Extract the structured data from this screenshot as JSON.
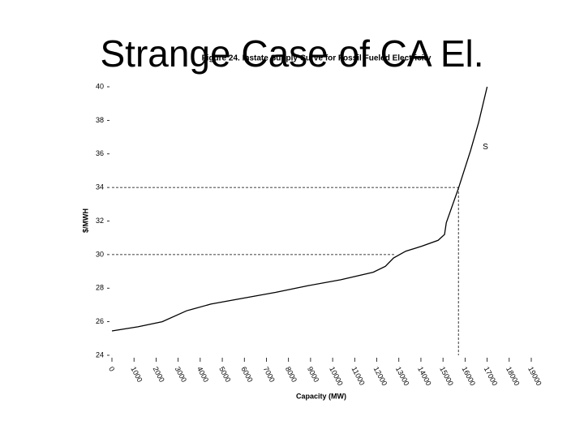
{
  "slide_title": "Strange Case of CA El.",
  "chart_data": {
    "type": "line",
    "title": "Figure 24. Instate Supply Curve for Fossil Fueled Electricity",
    "x_label": "Capacity (MW)",
    "y_label": "$/MWH",
    "x": [
      0,
      1180,
      2280,
      3380,
      4480,
      5950,
      7430,
      8900,
      10370,
      11840,
      12390,
      12760,
      13310,
      14040,
      14780,
      15070,
      15150,
      15700,
      16250,
      16620,
      17000
    ],
    "series": [
      {
        "name": "S",
        "color": "#000000",
        "values": [
          25.45,
          25.7,
          26.0,
          26.65,
          27.05,
          27.4,
          27.75,
          28.15,
          28.5,
          28.95,
          29.3,
          29.8,
          30.2,
          30.5,
          30.85,
          31.2,
          31.9,
          33.95,
          36.2,
          37.9,
          40
        ]
      }
    ],
    "annotations": [
      {
        "text": "S",
        "x": 16800,
        "y": 36.4
      }
    ],
    "reference_lines": [
      {
        "x": 15700,
        "y": 34,
        "drop": true
      },
      {
        "x": 12800,
        "y": 30,
        "drop": false
      }
    ],
    "xlim": [
      0,
      19000
    ],
    "ylim": [
      24,
      40
    ],
    "xticks": [
      0,
      1000,
      2000,
      3000,
      4000,
      5000,
      6000,
      7000,
      8000,
      9000,
      10000,
      11000,
      12000,
      13000,
      14000,
      15000,
      16000,
      17000,
      18000,
      19000
    ],
    "yticks": [
      24,
      26,
      28,
      30,
      32,
      34,
      36,
      38,
      40
    ]
  }
}
